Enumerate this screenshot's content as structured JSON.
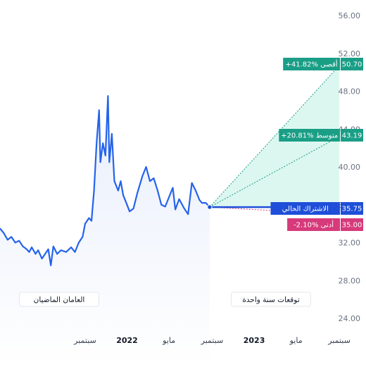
{
  "colors": {
    "history_line": "#2563eb",
    "history_fill": "#e8eefb",
    "forecast_fill": "#dcf7ef",
    "high_avg": "#1a9e86",
    "current": "#1f4fd8",
    "low": "#d63a7a"
  },
  "chart_data": {
    "type": "line",
    "title": "",
    "xlabel": "",
    "ylabel": "",
    "ylim": [
      22,
      56
    ],
    "y_ticks": [
      "56.00",
      "52.00",
      "48.00",
      "44.00",
      "40.00",
      "36.00",
      "32.00",
      "28.00",
      "24.00"
    ],
    "y_tick_values": [
      56,
      52,
      48,
      44,
      40,
      36,
      32,
      28,
      24
    ],
    "x_ticks": [
      {
        "label": "سبتمبر",
        "x": 2021.67,
        "bold": false
      },
      {
        "label": "2022",
        "x": 2022.0,
        "bold": true
      },
      {
        "label": "مايو",
        "x": 2022.33,
        "bold": false
      },
      {
        "label": "سبتمبر",
        "x": 2022.67,
        "bold": false
      },
      {
        "label": "2023",
        "x": 2023.0,
        "bold": true
      },
      {
        "label": "مايو",
        "x": 2023.33,
        "bold": false
      },
      {
        "label": "سبتمبر",
        "x": 2023.67,
        "bold": false
      }
    ],
    "section_labels": {
      "past": "العامان الماضيان",
      "future": "توقعات سنة واحدة"
    },
    "series": [
      {
        "values": [
          [
            2021.0,
            33.5
          ],
          [
            2021.03,
            33.0
          ],
          [
            2021.06,
            32.3
          ],
          [
            2021.09,
            32.6
          ],
          [
            2021.12,
            32.0
          ],
          [
            2021.15,
            32.2
          ],
          [
            2021.18,
            31.6
          ],
          [
            2021.21,
            31.3
          ],
          [
            2021.23,
            31.0
          ],
          [
            2021.25,
            31.5
          ],
          [
            2021.28,
            30.8
          ],
          [
            2021.3,
            31.2
          ],
          [
            2021.33,
            30.3
          ],
          [
            2021.36,
            30.9
          ],
          [
            2021.38,
            31.3
          ],
          [
            2021.4,
            29.6
          ],
          [
            2021.42,
            31.6
          ],
          [
            2021.45,
            30.8
          ],
          [
            2021.48,
            31.2
          ],
          [
            2021.52,
            31.0
          ],
          [
            2021.56,
            31.5
          ],
          [
            2021.59,
            31.0
          ],
          [
            2021.62,
            32.0
          ],
          [
            2021.65,
            32.6
          ],
          [
            2021.67,
            34.0
          ],
          [
            2021.7,
            34.6
          ],
          [
            2021.72,
            34.3
          ],
          [
            2021.74,
            37.5
          ],
          [
            2021.76,
            42.5
          ],
          [
            2021.78,
            46.0
          ],
          [
            2021.79,
            40.5
          ],
          [
            2021.81,
            42.5
          ],
          [
            2021.83,
            41.2
          ],
          [
            2021.85,
            47.5
          ],
          [
            2021.86,
            40.5
          ],
          [
            2021.88,
            43.5
          ],
          [
            2021.9,
            38.5
          ],
          [
            2021.93,
            37.5
          ],
          [
            2021.95,
            38.5
          ],
          [
            2021.97,
            37.0
          ],
          [
            2022.0,
            36.0
          ],
          [
            2022.02,
            35.3
          ],
          [
            2022.05,
            35.6
          ],
          [
            2022.08,
            37.2
          ],
          [
            2022.12,
            39.0
          ],
          [
            2022.15,
            40.0
          ],
          [
            2022.18,
            38.5
          ],
          [
            2022.21,
            38.8
          ],
          [
            2022.24,
            37.5
          ],
          [
            2022.27,
            36.0
          ],
          [
            2022.3,
            35.8
          ],
          [
            2022.33,
            36.8
          ],
          [
            2022.36,
            37.8
          ],
          [
            2022.38,
            35.5
          ],
          [
            2022.41,
            36.6
          ],
          [
            2022.45,
            35.6
          ],
          [
            2022.48,
            35.0
          ],
          [
            2022.51,
            38.3
          ],
          [
            2022.54,
            37.5
          ],
          [
            2022.57,
            36.5
          ],
          [
            2022.59,
            36.2
          ],
          [
            2022.62,
            36.2
          ],
          [
            2022.65,
            35.75
          ]
        ]
      }
    ],
    "forecast": {
      "start": [
        2022.65,
        35.75
      ],
      "end_x": 2023.67,
      "targets": [
        {
          "key": "high",
          "value": 50.7,
          "value_label": "50.70",
          "label": "+41.82% أقصى"
        },
        {
          "key": "avg",
          "value": 43.19,
          "value_label": "43.19",
          "label": "+20.81% متوسط"
        },
        {
          "key": "current",
          "value": 35.75,
          "value_label": "35.75",
          "label": "الاشتراك الحالي"
        },
        {
          "key": "low",
          "value": 35.0,
          "value_label": "35.00",
          "label": "-2.10% أدنى"
        }
      ]
    }
  }
}
